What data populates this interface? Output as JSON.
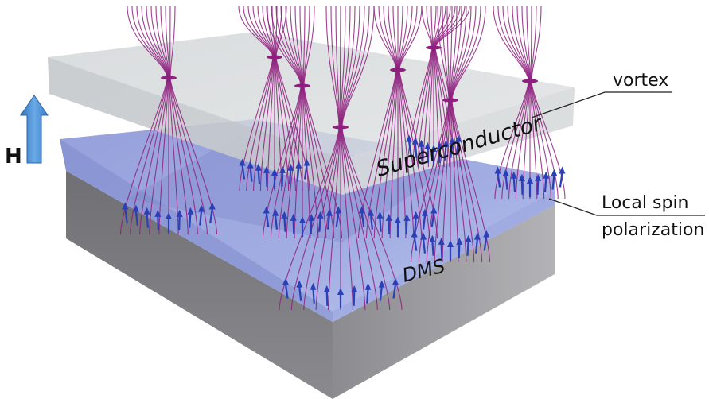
{
  "labels": {
    "field_arrow": "H",
    "superconductor": "Superconductor",
    "dms": "DMS",
    "vortex": "vortex",
    "spin_line1": "Local spin",
    "spin_line2": "polarization"
  },
  "colors": {
    "field_arrow": "#4f93d6",
    "field_label": "#3f7fc4",
    "field_lines": "#8e1f7e",
    "spin_arrows": "#2a3fb8",
    "superconductor_slab": "#c8cdd0",
    "dms_film": "#8f9bd6",
    "substrate": "#7d7d82"
  }
}
